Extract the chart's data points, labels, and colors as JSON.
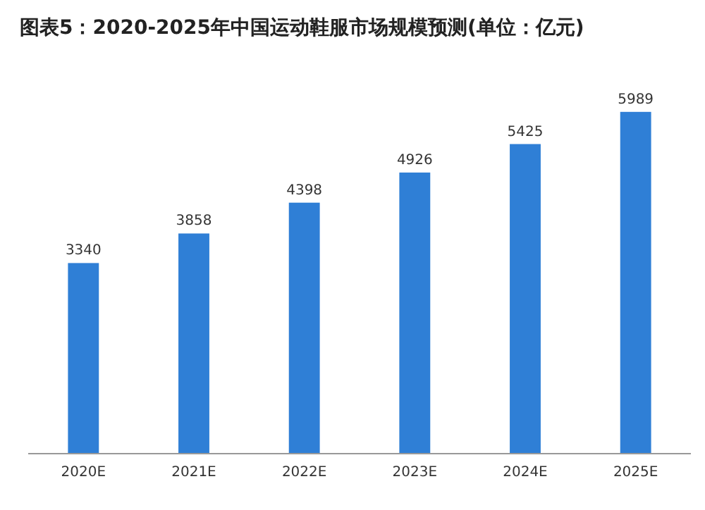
{
  "chart_data": {
    "type": "bar",
    "title": "图表5：2020-2025年中国运动鞋服市场规模预测(单位：亿元)",
    "categories": [
      "2020E",
      "2021E",
      "2022E",
      "2023E",
      "2024E",
      "2025E"
    ],
    "values": [
      3340,
      3858,
      4398,
      4926,
      5425,
      5989
    ],
    "color": "#2f7fd6",
    "data_labels": true
  }
}
